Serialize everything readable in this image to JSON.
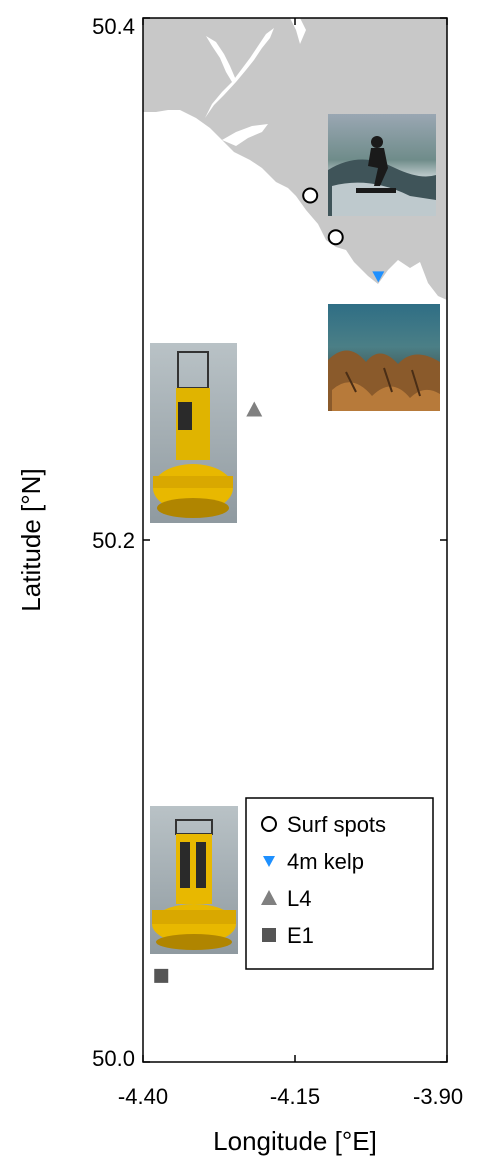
{
  "chart_data": {
    "type": "scatter",
    "title": "",
    "xlabel": "Longitude [°E]",
    "ylabel": "Latitude [°N]",
    "xlim": [
      -4.4,
      -3.9
    ],
    "ylim": [
      50.0,
      50.4
    ],
    "xticks": [
      -4.4,
      -4.15,
      -3.9
    ],
    "xtick_labels": [
      "-4.40",
      "-4.15",
      "-3.90"
    ],
    "yticks": [
      50.0,
      50.2,
      50.4
    ],
    "ytick_labels": [
      "50.0",
      "50.2",
      "50.4"
    ],
    "grid": false,
    "legend_position": "bottom-right",
    "series": [
      {
        "name": "Surf spots",
        "marker": "circle-open",
        "color": "#000000",
        "points": [
          [
            -4.125,
            50.332
          ],
          [
            -4.083,
            50.316
          ]
        ]
      },
      {
        "name": "4m kelp",
        "marker": "triangle-down",
        "color": "#1e90ff",
        "points": [
          [
            -4.013,
            50.301
          ]
        ]
      },
      {
        "name": "L4",
        "marker": "triangle-up",
        "color": "#808080",
        "points": [
          [
            -4.217,
            50.25
          ]
        ]
      },
      {
        "name": "E1",
        "marker": "square",
        "color": "#555555",
        "points": [
          [
            -4.37,
            50.033
          ]
        ]
      }
    ],
    "land_color": "#c8c8c8",
    "photos": [
      {
        "name": "surfer-photo",
        "subject": "surfer on wave"
      },
      {
        "name": "kelp-photo",
        "subject": "underwater kelp"
      },
      {
        "name": "l4-buoy-photo",
        "subject": "yellow buoy"
      },
      {
        "name": "e1-buoy-photo",
        "subject": "yellow buoy"
      }
    ]
  }
}
